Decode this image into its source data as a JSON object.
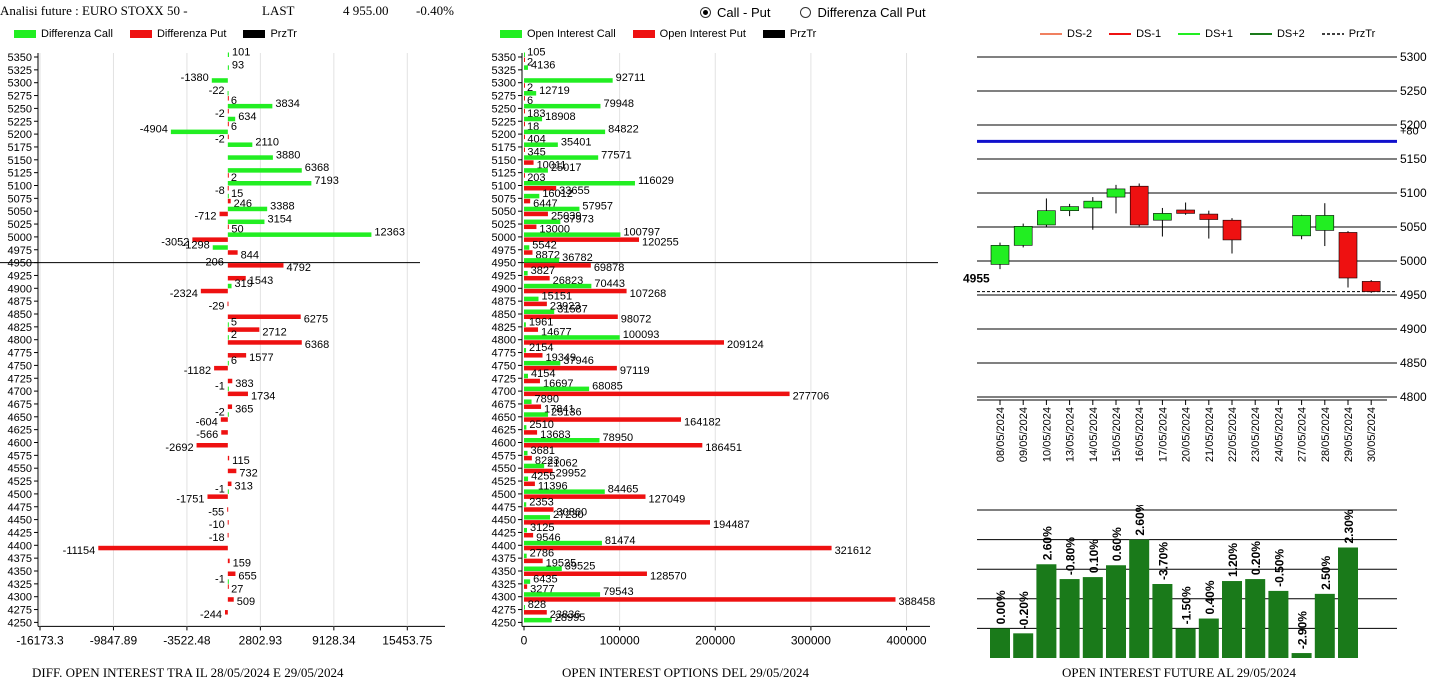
{
  "header": {
    "label": "Analisi future : EURO STOXX 50 -",
    "last_label": "LAST",
    "last_value": "4 955.00",
    "change": "-0.40%"
  },
  "radio": {
    "options": [
      "Call - Put",
      "Differenza Call Put"
    ],
    "selected": 0
  },
  "colors": {
    "call": "#22ee22",
    "put": "#ee1111",
    "future_up": "#1a7a1a",
    "line_ref": "#1010cc"
  },
  "panel1": {
    "legend": [
      {
        "label": "Differenza Call",
        "color": "#22ee22"
      },
      {
        "label": "Differenza Put",
        "color": "#ee1111"
      },
      {
        "label": "PrzTr",
        "color": "#000000"
      }
    ],
    "caption": "DIFF. OPEN INTEREST TRA IL 28/05/2024 E 29/05/2024"
  },
  "panel2": {
    "legend": [
      {
        "label": "Open Interest Call",
        "color": "#22ee22"
      },
      {
        "label": "Open Interest Put",
        "color": "#ee1111"
      },
      {
        "label": "PrzTr",
        "color": "#000000"
      }
    ],
    "caption": "OPEN INTEREST OPTIONS DEL 29/05/2024"
  },
  "panel3": {
    "legend": [
      {
        "label": "DS-2",
        "color": "#f08060",
        "style": "solid"
      },
      {
        "label": "DS-1",
        "color": "#ee1111",
        "style": "solid"
      },
      {
        "label": "DS+1",
        "color": "#22ee22",
        "style": "solid"
      },
      {
        "label": "DS+2",
        "color": "#1a7a1a",
        "style": "solid"
      },
      {
        "label": "PrzTr",
        "color": "#000000",
        "style": "dashed"
      }
    ],
    "caption": "OPEN INTEREST FUTURE AL 29/05/2024"
  },
  "chart_data": [
    {
      "type": "bar",
      "orientation": "horizontal",
      "categories": [
        5350,
        5325,
        5300,
        5275,
        5250,
        5225,
        5200,
        5175,
        5150,
        5125,
        5100,
        5075,
        5050,
        5025,
        5000,
        4975,
        4950,
        4925,
        4900,
        4875,
        4850,
        4825,
        4800,
        4775,
        4750,
        4725,
        4700,
        4675,
        4650,
        4625,
        4600,
        4575,
        4550,
        4525,
        4500,
        4475,
        4450,
        4425,
        4400,
        4375,
        4350,
        4325,
        4300,
        4275,
        4250
      ],
      "series": [
        {
          "name": "Differenza Call",
          "values": [
            101,
            93,
            -1380,
            -22,
            3834,
            634,
            -4904,
            2110,
            3880,
            6368,
            7193,
            15,
            3388,
            3154,
            12363,
            -1298,
            null,
            null,
            319,
            null,
            null,
            5,
            2,
            null,
            6,
            null,
            -1,
            null,
            -2,
            null,
            null,
            null,
            null,
            null,
            -1,
            null,
            null,
            null,
            null,
            null,
            null,
            -1,
            null,
            null,
            null
          ]
        },
        {
          "name": "Differenza Put",
          "values": [
            null,
            null,
            null,
            6,
            -2,
            6,
            -2,
            null,
            null,
            2,
            -8,
            246,
            -712,
            50,
            -3052,
            844,
            4792,
            1543,
            -2324,
            -29,
            6275,
            2712,
            6368,
            1577,
            -1182,
            383,
            1734,
            365,
            -604,
            -566,
            -2692,
            115,
            732,
            313,
            -1751,
            -55,
            -10,
            -18,
            -11154,
            159,
            655,
            27,
            509,
            -244,
            null
          ]
        }
      ],
      "reference_line": {
        "value": 4950,
        "label": "206",
        "series": "PrzTr"
      },
      "xlim": [
        -16173.3,
        18700
      ],
      "xticks": [
        "-16173.3",
        "-9847.89",
        "-3522.48",
        "2802.93",
        "9128.34",
        "15453.75"
      ]
    },
    {
      "type": "bar",
      "orientation": "horizontal",
      "categories": [
        5350,
        5325,
        5300,
        5275,
        5250,
        5225,
        5200,
        5175,
        5150,
        5125,
        5100,
        5075,
        5050,
        5025,
        5000,
        4975,
        4950,
        4925,
        4900,
        4875,
        4850,
        4825,
        4800,
        4775,
        4750,
        4725,
        4700,
        4675,
        4650,
        4625,
        4600,
        4575,
        4550,
        4525,
        4500,
        4475,
        4450,
        4425,
        4400,
        4375,
        4350,
        4325,
        4300,
        4275,
        4250
      ],
      "series": [
        {
          "name": "Open Interest Call",
          "values": [
            105,
            4136,
            92711,
            12719,
            79948,
            18908,
            84822,
            35401,
            77571,
            25017,
            116029,
            16012,
            57957,
            37973,
            100797,
            5542,
            36782,
            3827,
            70443,
            15151,
            31587,
            1961,
            100093,
            2154,
            37946,
            4154,
            68085,
            7890,
            25136,
            2510,
            78950,
            3681,
            21062,
            4255,
            84465,
            2353,
            27230,
            3125,
            81474,
            2786,
            39525,
            6435,
            79543,
            828,
            28995
          ]
        },
        {
          "name": "Open Interest Put",
          "values": [
            2,
            null,
            2,
            6,
            183,
            18,
            404,
            345,
            10011,
            203,
            33655,
            6447,
            25039,
            13000,
            120255,
            8872,
            69878,
            26823,
            107268,
            23923,
            98072,
            14677,
            209124,
            19349,
            97119,
            16697,
            277706,
            17841,
            164182,
            13683,
            186451,
            8223,
            29952,
            11396,
            127049,
            30860,
            194487,
            9546,
            321612,
            19525,
            128570,
            3277,
            388458,
            23836,
            null
          ]
        }
      ],
      "reference_line": {
        "value": 4950,
        "series": "PrzTr"
      },
      "xlim": [
        0,
        435000
      ],
      "xticks": [
        "0",
        "100000",
        "200000",
        "300000",
        "400000"
      ]
    },
    {
      "type": "candlestick",
      "dates": [
        "08/05/2024",
        "09/05/2024",
        "10/05/2024",
        "13/05/2024",
        "14/05/2024",
        "15/05/2024",
        "16/05/2024",
        "17/05/2024",
        "20/05/2024",
        "21/05/2024",
        "22/05/2024",
        "23/05/2024",
        "24/05/2024",
        "27/05/2024",
        "28/05/2024",
        "29/05/2024",
        "30/05/2024"
      ],
      "open": [
        4995,
        5023,
        5053,
        5074,
        5078,
        5094,
        5110,
        5060,
        5075,
        5069,
        5060,
        null,
        null,
        5037,
        5045,
        5042,
        4970
      ],
      "close": [
        5023,
        5051,
        5074,
        5080,
        5088,
        5106,
        5053,
        5070,
        5070,
        5061,
        5031,
        null,
        null,
        5067,
        5067,
        4975,
        4955
      ],
      "high": [
        5027,
        5055,
        5092,
        5084,
        5094,
        5112,
        5114,
        5078,
        5086,
        5074,
        5063,
        null,
        null,
        5068,
        5085,
        5044,
        4972
      ],
      "low": [
        4988,
        5020,
        5050,
        5066,
        5046,
        5070,
        5051,
        5036,
        5068,
        5033,
        5011,
        null,
        null,
        5032,
        5022,
        4961,
        4953
      ],
      "reference_lines": [
        {
          "value": 5176,
          "label": "+80",
          "color": "#1010cc"
        },
        {
          "value": 4955,
          "label": "4955",
          "style": "dashed"
        }
      ],
      "ylim": [
        4800,
        5300
      ],
      "yticks": [
        4800,
        4850,
        4900,
        4950,
        5000,
        5050,
        5100,
        5150,
        5200,
        5250,
        5300
      ]
    },
    {
      "type": "bar",
      "series": [
        {
          "name": "Open Interest Future",
          "values": [
            30,
            25,
            95,
            80,
            82,
            94,
            120,
            75,
            30,
            40,
            78,
            80,
            68,
            5,
            65,
            112
          ],
          "labels": [
            "0.00%",
            "-0.20%",
            "2.60%",
            "-0.80%",
            "0.10%",
            "0.60%",
            "2.60%",
            "-3.70%",
            "-1.50%",
            "0.40%",
            "1.20%",
            "0.20%",
            "-0.50%",
            "-2.90%",
            "2.50%",
            "2.30%"
          ]
        }
      ],
      "ylim": [
        0,
        150
      ]
    }
  ]
}
